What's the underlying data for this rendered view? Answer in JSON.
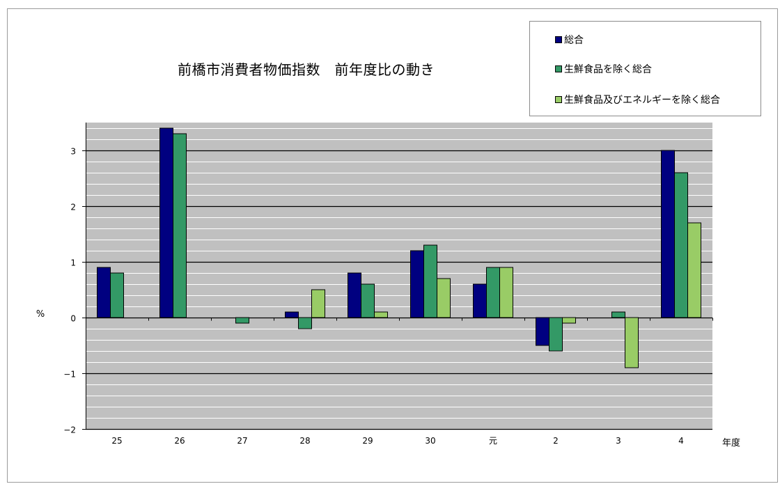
{
  "chart_data": {
    "type": "bar",
    "title": "前橋市消費者物価指数　前年度比の動き",
    "ylabel": "%",
    "xlabel": "年度",
    "categories": [
      "25",
      "26",
      "27",
      "28",
      "29",
      "30",
      "元",
      "2",
      "3",
      "4"
    ],
    "ylim": [
      -2,
      3.5
    ],
    "yticks": [
      -2,
      -1,
      0,
      1,
      2,
      3
    ],
    "ytick_labels": [
      "−2",
      "−1",
      "0",
      "1",
      "2",
      "3"
    ],
    "grid": "minor and major horizontal gridlines",
    "legend_position": "top-right",
    "series": [
      {
        "name": "総合",
        "color": "#000080",
        "values": [
          0.9,
          3.4,
          0,
          0.1,
          0.8,
          1.2,
          0.6,
          -0.5,
          0,
          3.0
        ]
      },
      {
        "name": "生鮮食品を除く総合",
        "color": "#339966",
        "values": [
          0.8,
          3.3,
          -0.1,
          -0.2,
          0.6,
          1.3,
          0.9,
          -0.6,
          0.1,
          2.6
        ]
      },
      {
        "name": "生鮮食品及びエネルギーを除く総合",
        "color": "#99CC66",
        "values": [
          null,
          null,
          null,
          0.5,
          0.1,
          0.7,
          0.9,
          -0.1,
          -0.9,
          1.7
        ]
      }
    ],
    "colors": {
      "plot_background": "#C0C0C0",
      "major_grid": "#000000",
      "minor_grid": "#FFFFFF"
    }
  }
}
